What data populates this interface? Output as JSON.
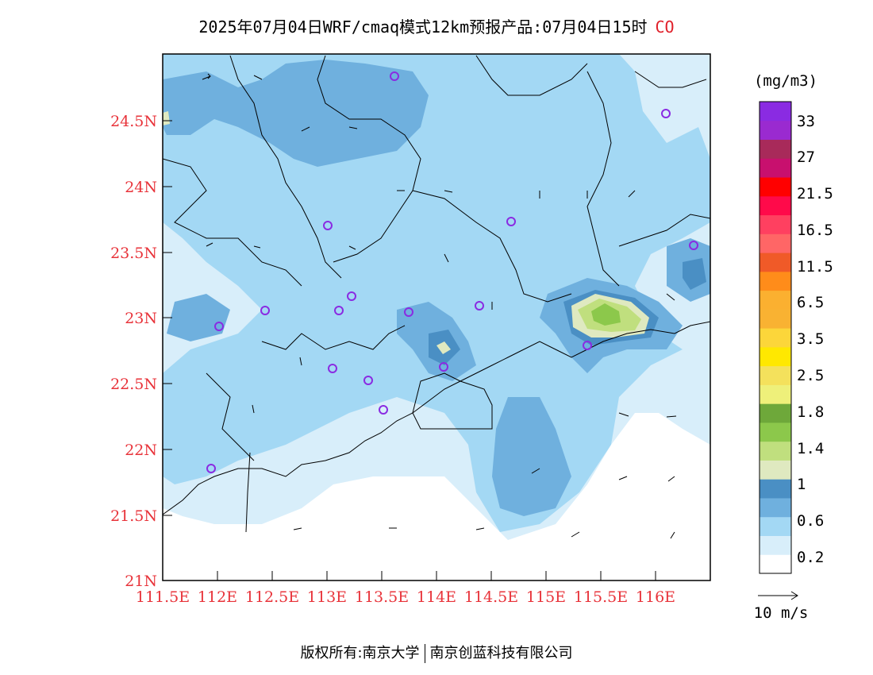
{
  "header": {
    "title": "2025年07月04日WRF/cmaq模式12km预报产品:07月04日15时",
    "pollutant": "CO"
  },
  "map": {
    "lat_ticks": [
      "24.5N",
      "24N",
      "23.5N",
      "23N",
      "22.5N",
      "22N",
      "21.5N",
      "21N"
    ],
    "lon_ticks": [
      "111.5E",
      "112E",
      "112.5E",
      "113E",
      "113.5E",
      "114E",
      "114.5E",
      "115E",
      "115.5E",
      "116E"
    ],
    "lat_range": [
      21,
      25
    ],
    "lon_range": [
      111.5,
      116.7
    ]
  },
  "colorbar": {
    "unit": "(mg/m3)",
    "labels": [
      "33",
      "27",
      "21.5",
      "16.5",
      "11.5",
      "6.5",
      "3.5",
      "2.5",
      "1.8",
      "1.4",
      "1",
      "0.6",
      "0.2"
    ],
    "colors": [
      "#ffffff",
      "#d8eefa",
      "#a3d8f4",
      "#6fb0de",
      "#4a8fc4",
      "#dfe9c0",
      "#c0df7e",
      "#8cc84b",
      "#6ea83a",
      "#eef07a",
      "#f4e15c",
      "#ffe800",
      "#fcd63a",
      "#f9b232",
      "#fbb030",
      "#ff8c1a",
      "#f05a28",
      "#ff6666",
      "#ff4060",
      "#ff0a4a",
      "#ff0000",
      "#c8106e",
      "#a82a5a",
      "#9a2ad0",
      "#8a2be2"
    ]
  },
  "wind_legend": {
    "label": "10 m/s"
  },
  "footer": {
    "left": "版权所有:南京大学",
    "right": "南京创蓝科技有限公司"
  }
}
